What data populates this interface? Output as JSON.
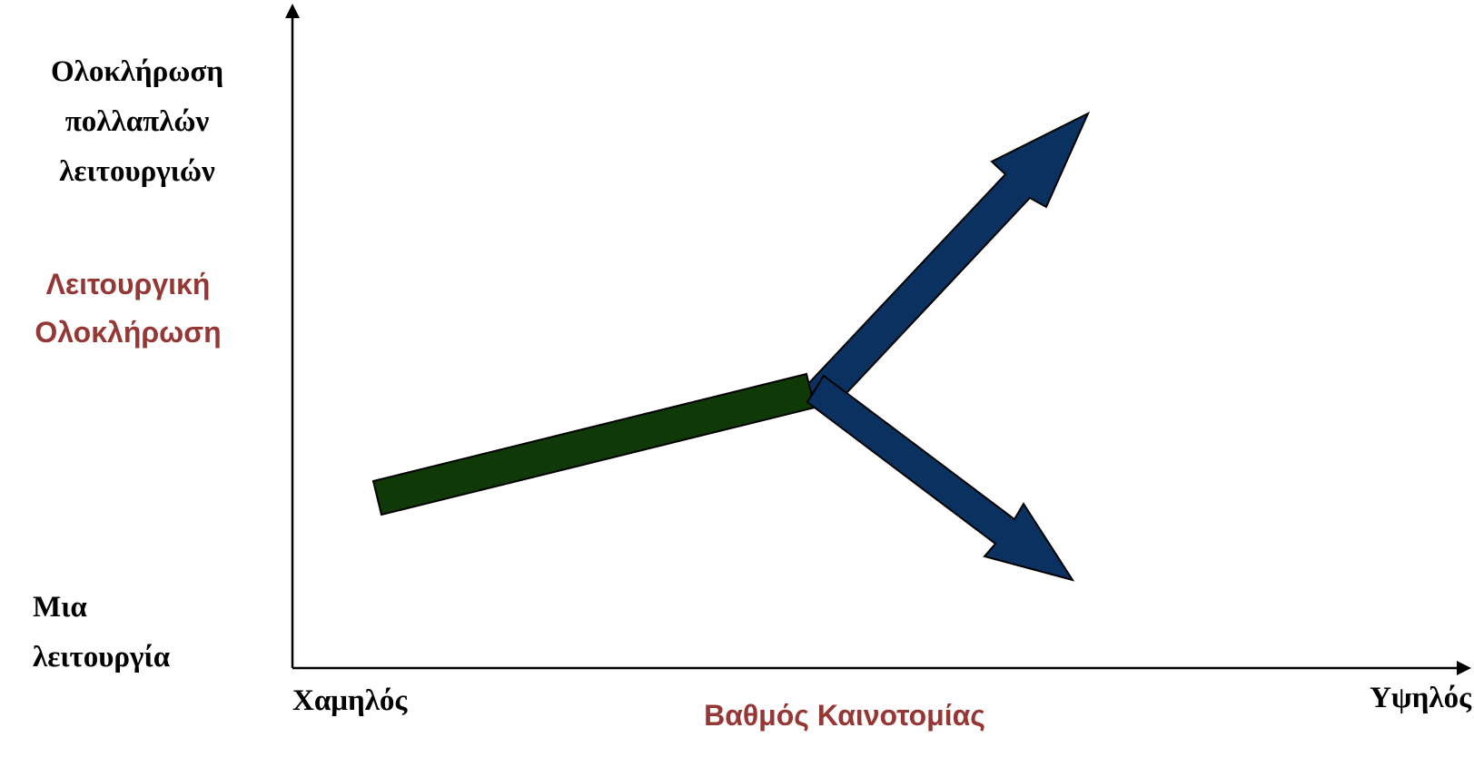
{
  "y_axis": {
    "high_label": [
      "Ολοκλήρωση",
      "πολλαπλών",
      "λειτουργιών"
    ],
    "low_label": [
      "Μια",
      "λειτουργία"
    ],
    "title": [
      "Λειτουργική",
      "Ολοκλήρωση"
    ]
  },
  "x_axis": {
    "low_label": "Χαμηλός",
    "high_label": "Υψηλός",
    "title": "Βαθμός Καινοτομίας"
  },
  "colors": {
    "axis": "#000000",
    "axis_title": "#953735",
    "green_path": "#0f3a08",
    "blue_arrows": "#0a3160",
    "outline": "#000000"
  }
}
